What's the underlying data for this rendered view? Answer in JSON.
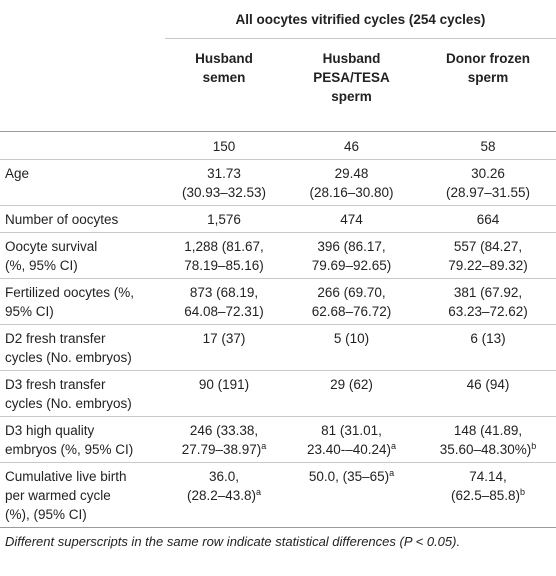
{
  "table": {
    "group_header": "All oocytes vitrified cycles (254 cycles)",
    "columns": [
      {
        "line1": "Husband",
        "line2": "semen",
        "line3": ""
      },
      {
        "line1": "Husband",
        "line2": "PESA/TESA",
        "line3": "sperm"
      },
      {
        "line1": "Donor frozen",
        "line2": "sperm",
        "line3": ""
      }
    ],
    "rows": [
      {
        "label": [
          "",
          ""
        ],
        "values": [
          [
            "150",
            ""
          ],
          [
            "46",
            ""
          ],
          [
            "58",
            ""
          ]
        ],
        "sups": [
          "",
          "",
          ""
        ]
      },
      {
        "label": [
          "Age",
          ""
        ],
        "values": [
          [
            "31.73",
            "(30.93–32.53)"
          ],
          [
            "29.48",
            "(28.16–30.80)"
          ],
          [
            "30.26",
            "(28.97–31.55)"
          ]
        ],
        "sups": [
          "",
          "",
          ""
        ]
      },
      {
        "label": [
          "Number of oocytes",
          ""
        ],
        "values": [
          [
            "1,576",
            ""
          ],
          [
            "474",
            ""
          ],
          [
            "664",
            ""
          ]
        ],
        "sups": [
          "",
          "",
          ""
        ]
      },
      {
        "label": [
          "Oocyte survival",
          "(%, 95% CI)"
        ],
        "values": [
          [
            "1,288 (81.67,",
            "78.19–85.16)"
          ],
          [
            "396 (86.17,",
            "79.69–92.65)"
          ],
          [
            "557 (84.27,",
            "79.22–89.32)"
          ]
        ],
        "sups": [
          "",
          "",
          ""
        ]
      },
      {
        "label": [
          "Fertilized oocytes (%,",
          "95% CI)"
        ],
        "values": [
          [
            "873 (68.19,",
            "64.08–72.31)"
          ],
          [
            "266 (69.70,",
            "62.68–76.72)"
          ],
          [
            "381 (67.92,",
            "63.23–72.62)"
          ]
        ],
        "sups": [
          "",
          "",
          ""
        ]
      },
      {
        "label": [
          "D2 fresh transfer",
          "cycles (No. embryos)"
        ],
        "values": [
          [
            "17 (37)",
            ""
          ],
          [
            "5 (10)",
            ""
          ],
          [
            "6 (13)",
            ""
          ]
        ],
        "sups": [
          "",
          "",
          ""
        ]
      },
      {
        "label": [
          "D3 fresh transfer",
          "cycles (No. embryos)"
        ],
        "values": [
          [
            "90 (191)",
            ""
          ],
          [
            "29 (62)",
            ""
          ],
          [
            "46 (94)",
            ""
          ]
        ],
        "sups": [
          "",
          "",
          ""
        ]
      },
      {
        "label": [
          "D3 high quality",
          "embryos (%, 95% CI)"
        ],
        "values": [
          [
            "246 (33.38,",
            "27.79–38.97)"
          ],
          [
            "81 (31.01,",
            "23.40-–40.24)"
          ],
          [
            "148 (41.89,",
            "35.60–48.30%)"
          ]
        ],
        "sups": [
          "a",
          "a",
          "b"
        ]
      },
      {
        "label": [
          "Cumulative live birth",
          "per warmed cycle",
          "(%), (95% CI)"
        ],
        "values": [
          [
            "36.0,",
            "(28.2–43.8)"
          ],
          [
            "50.0, (35–65)",
            ""
          ],
          [
            "74.14,",
            "(62.5–85.8)"
          ]
        ],
        "sups": [
          "a",
          "a",
          "b"
        ]
      }
    ],
    "footnote": "Different superscripts in the same row indicate statistical differences (P < 0.05)."
  }
}
